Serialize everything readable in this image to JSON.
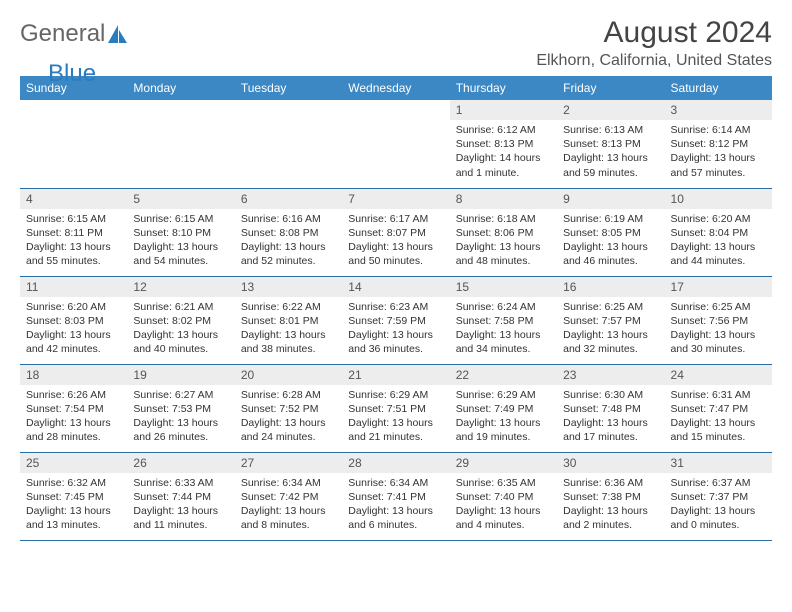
{
  "logo": {
    "part1": "General",
    "part2": "Blue"
  },
  "title": "August 2024",
  "location": "Elkhorn, California, United States",
  "colors": {
    "header_bg": "#3b88c4",
    "row_divider": "#2a6fa8",
    "daynum_bg": "#ededed",
    "logo_blue": "#2a7bbf"
  },
  "weekdays": [
    "Sunday",
    "Monday",
    "Tuesday",
    "Wednesday",
    "Thursday",
    "Friday",
    "Saturday"
  ],
  "days": [
    {
      "n": "",
      "sr": "",
      "ss": "",
      "dl": ""
    },
    {
      "n": "",
      "sr": "",
      "ss": "",
      "dl": ""
    },
    {
      "n": "",
      "sr": "",
      "ss": "",
      "dl": ""
    },
    {
      "n": "",
      "sr": "",
      "ss": "",
      "dl": ""
    },
    {
      "n": "1",
      "sr": "Sunrise: 6:12 AM",
      "ss": "Sunset: 8:13 PM",
      "dl": "Daylight: 14 hours and 1 minute."
    },
    {
      "n": "2",
      "sr": "Sunrise: 6:13 AM",
      "ss": "Sunset: 8:13 PM",
      "dl": "Daylight: 13 hours and 59 minutes."
    },
    {
      "n": "3",
      "sr": "Sunrise: 6:14 AM",
      "ss": "Sunset: 8:12 PM",
      "dl": "Daylight: 13 hours and 57 minutes."
    },
    {
      "n": "4",
      "sr": "Sunrise: 6:15 AM",
      "ss": "Sunset: 8:11 PM",
      "dl": "Daylight: 13 hours and 55 minutes."
    },
    {
      "n": "5",
      "sr": "Sunrise: 6:15 AM",
      "ss": "Sunset: 8:10 PM",
      "dl": "Daylight: 13 hours and 54 minutes."
    },
    {
      "n": "6",
      "sr": "Sunrise: 6:16 AM",
      "ss": "Sunset: 8:08 PM",
      "dl": "Daylight: 13 hours and 52 minutes."
    },
    {
      "n": "7",
      "sr": "Sunrise: 6:17 AM",
      "ss": "Sunset: 8:07 PM",
      "dl": "Daylight: 13 hours and 50 minutes."
    },
    {
      "n": "8",
      "sr": "Sunrise: 6:18 AM",
      "ss": "Sunset: 8:06 PM",
      "dl": "Daylight: 13 hours and 48 minutes."
    },
    {
      "n": "9",
      "sr": "Sunrise: 6:19 AM",
      "ss": "Sunset: 8:05 PM",
      "dl": "Daylight: 13 hours and 46 minutes."
    },
    {
      "n": "10",
      "sr": "Sunrise: 6:20 AM",
      "ss": "Sunset: 8:04 PM",
      "dl": "Daylight: 13 hours and 44 minutes."
    },
    {
      "n": "11",
      "sr": "Sunrise: 6:20 AM",
      "ss": "Sunset: 8:03 PM",
      "dl": "Daylight: 13 hours and 42 minutes."
    },
    {
      "n": "12",
      "sr": "Sunrise: 6:21 AM",
      "ss": "Sunset: 8:02 PM",
      "dl": "Daylight: 13 hours and 40 minutes."
    },
    {
      "n": "13",
      "sr": "Sunrise: 6:22 AM",
      "ss": "Sunset: 8:01 PM",
      "dl": "Daylight: 13 hours and 38 minutes."
    },
    {
      "n": "14",
      "sr": "Sunrise: 6:23 AM",
      "ss": "Sunset: 7:59 PM",
      "dl": "Daylight: 13 hours and 36 minutes."
    },
    {
      "n": "15",
      "sr": "Sunrise: 6:24 AM",
      "ss": "Sunset: 7:58 PM",
      "dl": "Daylight: 13 hours and 34 minutes."
    },
    {
      "n": "16",
      "sr": "Sunrise: 6:25 AM",
      "ss": "Sunset: 7:57 PM",
      "dl": "Daylight: 13 hours and 32 minutes."
    },
    {
      "n": "17",
      "sr": "Sunrise: 6:25 AM",
      "ss": "Sunset: 7:56 PM",
      "dl": "Daylight: 13 hours and 30 minutes."
    },
    {
      "n": "18",
      "sr": "Sunrise: 6:26 AM",
      "ss": "Sunset: 7:54 PM",
      "dl": "Daylight: 13 hours and 28 minutes."
    },
    {
      "n": "19",
      "sr": "Sunrise: 6:27 AM",
      "ss": "Sunset: 7:53 PM",
      "dl": "Daylight: 13 hours and 26 minutes."
    },
    {
      "n": "20",
      "sr": "Sunrise: 6:28 AM",
      "ss": "Sunset: 7:52 PM",
      "dl": "Daylight: 13 hours and 24 minutes."
    },
    {
      "n": "21",
      "sr": "Sunrise: 6:29 AM",
      "ss": "Sunset: 7:51 PM",
      "dl": "Daylight: 13 hours and 21 minutes."
    },
    {
      "n": "22",
      "sr": "Sunrise: 6:29 AM",
      "ss": "Sunset: 7:49 PM",
      "dl": "Daylight: 13 hours and 19 minutes."
    },
    {
      "n": "23",
      "sr": "Sunrise: 6:30 AM",
      "ss": "Sunset: 7:48 PM",
      "dl": "Daylight: 13 hours and 17 minutes."
    },
    {
      "n": "24",
      "sr": "Sunrise: 6:31 AM",
      "ss": "Sunset: 7:47 PM",
      "dl": "Daylight: 13 hours and 15 minutes."
    },
    {
      "n": "25",
      "sr": "Sunrise: 6:32 AM",
      "ss": "Sunset: 7:45 PM",
      "dl": "Daylight: 13 hours and 13 minutes."
    },
    {
      "n": "26",
      "sr": "Sunrise: 6:33 AM",
      "ss": "Sunset: 7:44 PM",
      "dl": "Daylight: 13 hours and 11 minutes."
    },
    {
      "n": "27",
      "sr": "Sunrise: 6:34 AM",
      "ss": "Sunset: 7:42 PM",
      "dl": "Daylight: 13 hours and 8 minutes."
    },
    {
      "n": "28",
      "sr": "Sunrise: 6:34 AM",
      "ss": "Sunset: 7:41 PM",
      "dl": "Daylight: 13 hours and 6 minutes."
    },
    {
      "n": "29",
      "sr": "Sunrise: 6:35 AM",
      "ss": "Sunset: 7:40 PM",
      "dl": "Daylight: 13 hours and 4 minutes."
    },
    {
      "n": "30",
      "sr": "Sunrise: 6:36 AM",
      "ss": "Sunset: 7:38 PM",
      "dl": "Daylight: 13 hours and 2 minutes."
    },
    {
      "n": "31",
      "sr": "Sunrise: 6:37 AM",
      "ss": "Sunset: 7:37 PM",
      "dl": "Daylight: 13 hours and 0 minutes."
    }
  ]
}
